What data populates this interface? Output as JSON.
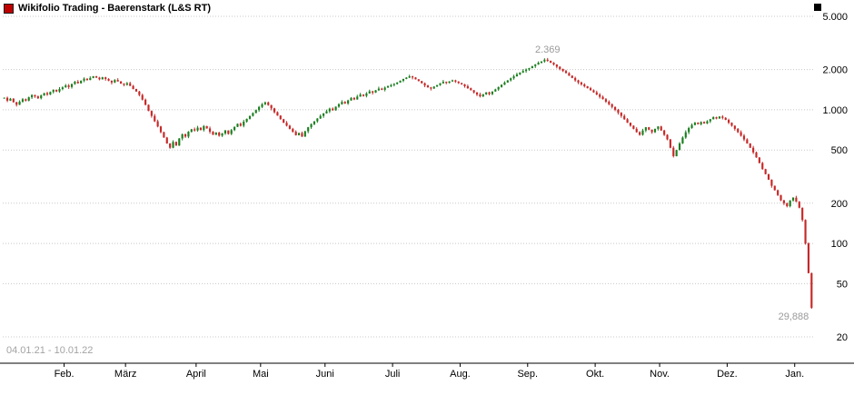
{
  "window": {
    "title": "Wikifolio Trading - Baerenstark (L&S RT)"
  },
  "footer": {
    "date_range": "04.01.21 - 10.01.22"
  },
  "chart_data": {
    "type": "candlestick",
    "title": "Wikifolio Trading - Baerenstark (L&S RT)",
    "scale": "log",
    "grid": true,
    "ylim": [
      20,
      5000
    ],
    "y_ticks": [
      "5.000",
      "2.000",
      "1.000",
      "500",
      "200",
      "100",
      "50",
      "20"
    ],
    "y_tick_values": [
      5000,
      2000,
      1000,
      500,
      200,
      100,
      50,
      20
    ],
    "x_tick_labels": [
      "Feb.",
      "März",
      "April",
      "Mai",
      "Juni",
      "Juli",
      "Aug.",
      "Sep.",
      "Okt.",
      "Nov.",
      "Dez.",
      "Jan."
    ],
    "month_start_indices": [
      20,
      40,
      63,
      84,
      105,
      127,
      149,
      171,
      193,
      214,
      236,
      258
    ],
    "annotations": {
      "high_label": "2.369",
      "low_label": "29,888"
    },
    "colors": {
      "up": "#1b7e20",
      "down": "#c62828",
      "grid": "#c8c8c8"
    },
    "closes": [
      1230,
      1170,
      1210,
      1140,
      1090,
      1150,
      1200,
      1170,
      1240,
      1290,
      1260,
      1220,
      1280,
      1330,
      1300,
      1360,
      1410,
      1370,
      1430,
      1470,
      1520,
      1480,
      1560,
      1620,
      1580,
      1650,
      1710,
      1670,
      1730,
      1780,
      1740,
      1690,
      1750,
      1700,
      1650,
      1600,
      1670,
      1630,
      1570,
      1540,
      1580,
      1510,
      1430,
      1370,
      1290,
      1190,
      1090,
      980,
      900,
      820,
      750,
      680,
      620,
      560,
      520,
      575,
      540,
      610,
      655,
      630,
      685,
      715,
      700,
      735,
      705,
      755,
      725,
      685,
      650,
      675,
      640,
      665,
      700,
      660,
      705,
      745,
      785,
      760,
      815,
      855,
      900,
      945,
      995,
      1050,
      1100,
      1135,
      1085,
      1025,
      960,
      905,
      850,
      800,
      760,
      720,
      685,
      645,
      670,
      630,
      690,
      740,
      780,
      820,
      860,
      900,
      940,
      975,
      1020,
      990,
      1055,
      1100,
      1145,
      1115,
      1175,
      1225,
      1195,
      1255,
      1300,
      1270,
      1325,
      1375,
      1345,
      1400,
      1440,
      1410,
      1465,
      1500,
      1530,
      1560,
      1600,
      1650,
      1700,
      1740,
      1780,
      1745,
      1690,
      1640,
      1580,
      1520,
      1470,
      1440,
      1490,
      1530,
      1580,
      1620,
      1590,
      1630,
      1660,
      1625,
      1585,
      1550,
      1500,
      1450,
      1400,
      1350,
      1300,
      1260,
      1305,
      1350,
      1310,
      1370,
      1420,
      1480,
      1540,
      1600,
      1660,
      1720,
      1780,
      1840,
      1900,
      1950,
      2000,
      2050,
      2120,
      2180,
      2250,
      2300,
      2369,
      2320,
      2250,
      2180,
      2100,
      2020,
      1950,
      1880,
      1800,
      1730,
      1660,
      1600,
      1550,
      1500,
      1450,
      1400,
      1350,
      1300,
      1250,
      1200,
      1150,
      1100,
      1050,
      1000,
      950,
      900,
      850,
      800,
      760,
      720,
      680,
      650,
      700,
      740,
      710,
      680,
      720,
      750,
      700,
      650,
      600,
      520,
      450,
      500,
      560,
      620,
      680,
      730,
      770,
      800,
      780,
      810,
      790,
      820,
      850,
      880,
      860,
      890,
      870,
      840,
      800,
      760,
      720,
      680,
      640,
      600,
      560,
      520,
      480,
      440,
      400,
      360,
      330,
      300,
      270,
      250,
      230,
      210,
      200,
      190,
      210,
      220,
      205,
      185,
      150,
      100,
      60,
      33
    ]
  }
}
